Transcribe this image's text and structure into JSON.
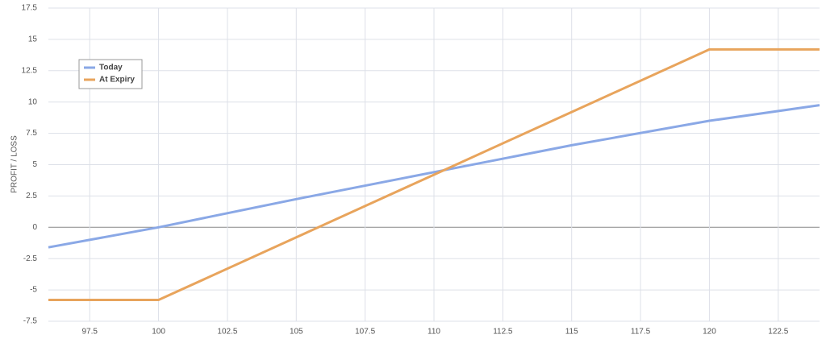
{
  "chart_data": {
    "type": "line",
    "y_label": "PROFIT / LOSS",
    "x": [
      96,
      100,
      105,
      110,
      115,
      120,
      124
    ],
    "series": [
      {
        "name": "Today",
        "color": "#8aa8e6",
        "values": [
          -1.6,
          0,
          2.25,
          4.4,
          6.55,
          8.5,
          9.75
        ]
      },
      {
        "name": "At Expiry",
        "color": "#e8a45c",
        "values": [
          -5.8,
          -5.8,
          -0.8,
          4.2,
          9.2,
          14.2,
          14.2
        ]
      }
    ],
    "xlim": [
      96,
      124
    ],
    "xticks": [
      97.5,
      100,
      102.5,
      105,
      107.5,
      110,
      112.5,
      115,
      117.5,
      120,
      122.5
    ],
    "ylim": [
      -7.5,
      17.5
    ],
    "yticks": [
      -7.5,
      -5,
      -2.5,
      0,
      2.5,
      5,
      7.5,
      10,
      12.5,
      15,
      17.5
    ],
    "grid": true,
    "legend": "upper-left"
  }
}
